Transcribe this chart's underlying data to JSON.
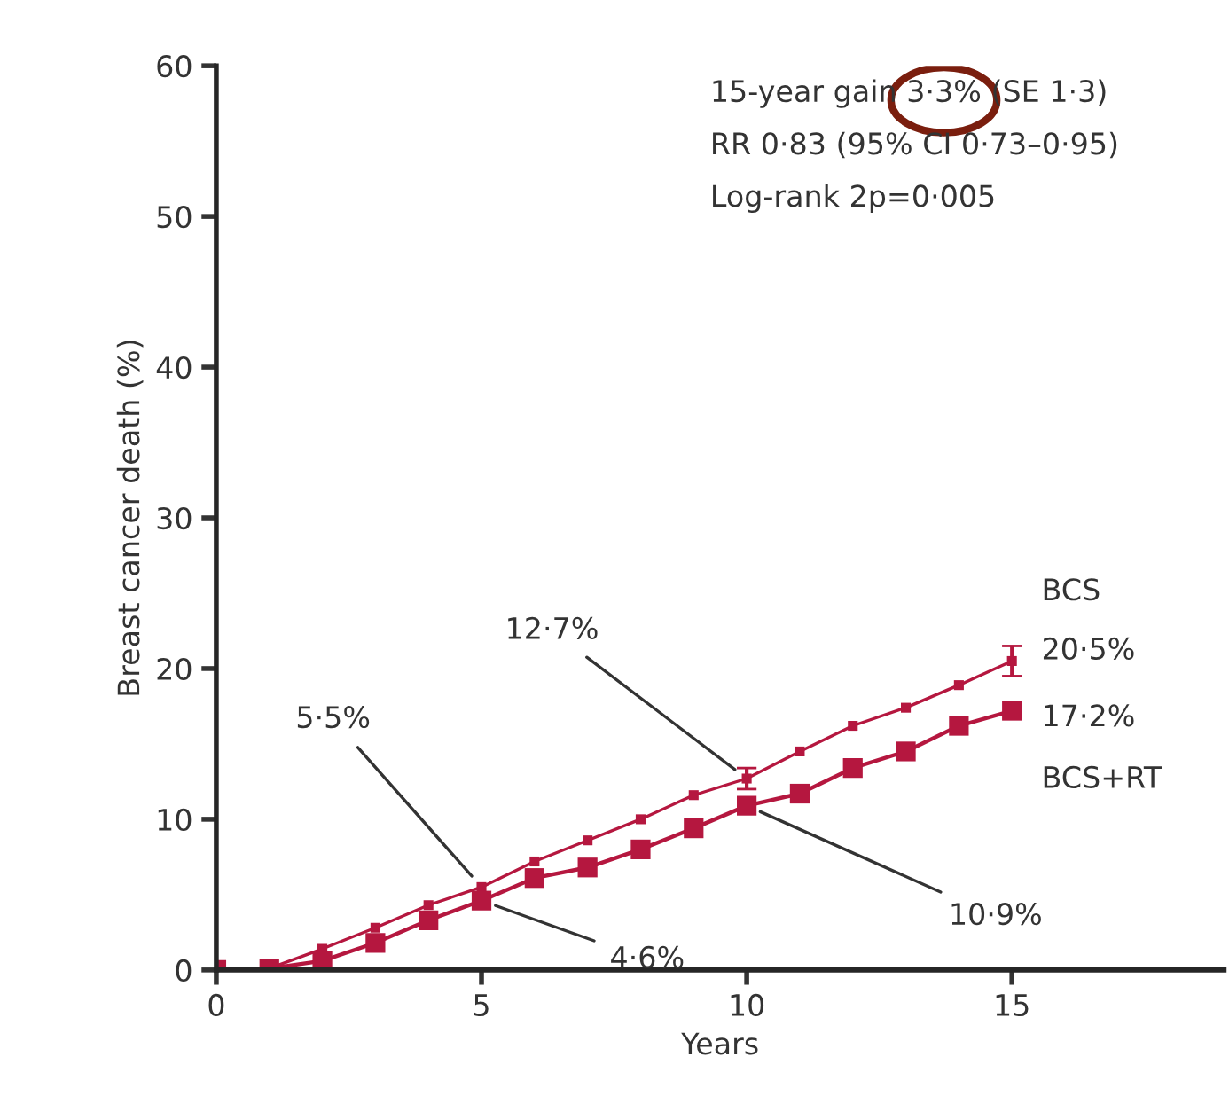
{
  "chart_data": {
    "type": "line",
    "xlabel": "Years",
    "ylabel": "Breast cancer death (%)",
    "xlim": [
      0,
      19
    ],
    "xticks": [
      0,
      5,
      10,
      15
    ],
    "ylim": [
      0,
      60
    ],
    "yticks": [
      0,
      10,
      20,
      30,
      40,
      50,
      60
    ],
    "grid": false,
    "marker": "square",
    "line_style": "solid",
    "series": [
      {
        "name": "BCS",
        "color": "#b5173f",
        "x": [
          0,
          1,
          2,
          3,
          4,
          5,
          6,
          7,
          8,
          9,
          10,
          11,
          12,
          13,
          14,
          15
        ],
        "values": [
          0,
          0.1,
          1.4,
          2.8,
          4.3,
          5.5,
          7.2,
          8.6,
          10.0,
          11.6,
          12.7,
          14.5,
          16.2,
          17.4,
          18.9,
          20.5
        ],
        "errors": [
          null,
          null,
          null,
          null,
          null,
          null,
          null,
          null,
          null,
          null,
          0.7,
          null,
          null,
          null,
          null,
          1.0
        ]
      },
      {
        "name": "BCS+RT",
        "color": "#b5173f",
        "x": [
          0,
          1,
          2,
          3,
          4,
          5,
          6,
          7,
          8,
          9,
          10,
          11,
          12,
          13,
          14,
          15
        ],
        "values": [
          0,
          0.1,
          0.6,
          1.8,
          3.3,
          4.6,
          6.1,
          6.8,
          8.0,
          9.4,
          10.9,
          11.7,
          13.4,
          14.5,
          16.2,
          17.2
        ]
      }
    ],
    "annotations": [
      {
        "text": "12·7%",
        "x": 10,
        "y": 12.7
      },
      {
        "text": "10·9%",
        "x": 10,
        "y": 10.9
      },
      {
        "text": "5·5%",
        "x": 5,
        "y": 5.5
      },
      {
        "text": "4·6%",
        "x": 5,
        "y": 4.6
      },
      {
        "text": "20·5%",
        "x": 15,
        "y": 20.5
      },
      {
        "text": "17·2%",
        "x": 15,
        "y": 17.2
      },
      "15-year gain 3·3% (SE 1·3)",
      "RR 0·83 (95% CI 0·73–0·95)",
      "Log-rank 2p=0·005"
    ]
  }
}
